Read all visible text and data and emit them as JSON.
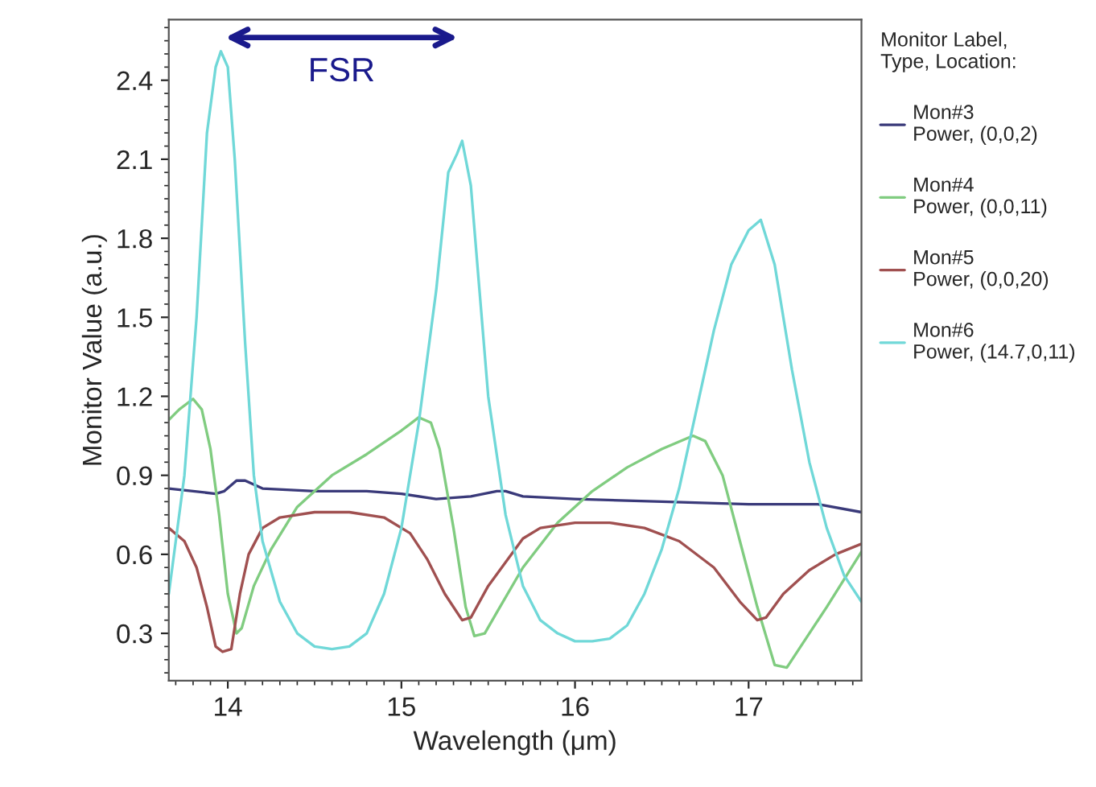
{
  "chart_data": {
    "type": "line",
    "xlabel": "Wavelength (μm)",
    "ylabel": "Monitor Value (a.u.)",
    "legend_title": "Monitor Label,\nType, Location:",
    "legend": "right",
    "grid": false,
    "marker": "none",
    "line_style": "solid",
    "xlim": [
      13.66,
      17.65
    ],
    "xticks": [
      14,
      15,
      16,
      17
    ],
    "ylim": [
      0.12,
      2.63
    ],
    "yticks": [
      0.3,
      0.6,
      0.9,
      1.2,
      1.5,
      1.8,
      2.1,
      2.4
    ],
    "annotations": [
      "FSR"
    ],
    "series": [
      {
        "name": "Mon#3\nPower, (0,0,2)",
        "color": "#3a3a7a",
        "x": [
          13.66,
          13.8,
          13.93,
          13.98,
          14.05,
          14.1,
          14.2,
          14.5,
          14.8,
          15.0,
          15.2,
          15.4,
          15.55,
          15.6,
          15.7,
          16.0,
          16.5,
          17.0,
          17.4,
          17.65
        ],
        "values": [
          0.85,
          0.84,
          0.83,
          0.84,
          0.88,
          0.88,
          0.85,
          0.84,
          0.84,
          0.83,
          0.81,
          0.82,
          0.84,
          0.84,
          0.82,
          0.81,
          0.8,
          0.79,
          0.79,
          0.76
        ]
      },
      {
        "name": "Mon#4\nPower, (0,0,11)",
        "color": "#80cc80",
        "x": [
          13.66,
          13.72,
          13.8,
          13.85,
          13.9,
          13.95,
          14.0,
          14.05,
          14.08,
          14.15,
          14.25,
          14.4,
          14.6,
          14.8,
          15.0,
          15.1,
          15.17,
          15.22,
          15.3,
          15.37,
          15.42,
          15.48,
          15.55,
          15.7,
          15.9,
          16.1,
          16.3,
          16.5,
          16.68,
          16.75,
          16.85,
          16.95,
          17.05,
          17.15,
          17.22,
          17.3,
          17.45,
          17.65
        ],
        "values": [
          1.11,
          1.15,
          1.19,
          1.15,
          1.0,
          0.75,
          0.45,
          0.3,
          0.32,
          0.48,
          0.62,
          0.78,
          0.9,
          0.98,
          1.07,
          1.12,
          1.1,
          1.0,
          0.7,
          0.4,
          0.29,
          0.3,
          0.38,
          0.55,
          0.72,
          0.84,
          0.93,
          1.0,
          1.05,
          1.03,
          0.9,
          0.65,
          0.4,
          0.18,
          0.17,
          0.25,
          0.4,
          0.61
        ]
      },
      {
        "name": "Mon#5\nPower, (0,0,20)",
        "color": "#a05050",
        "x": [
          13.66,
          13.75,
          13.82,
          13.88,
          13.93,
          13.97,
          14.02,
          14.07,
          14.12,
          14.2,
          14.3,
          14.5,
          14.7,
          14.9,
          15.05,
          15.15,
          15.25,
          15.35,
          15.4,
          15.5,
          15.6,
          15.7,
          15.8,
          16.0,
          16.2,
          16.4,
          16.6,
          16.8,
          16.95,
          17.05,
          17.1,
          17.2,
          17.35,
          17.5,
          17.65
        ],
        "values": [
          0.7,
          0.65,
          0.55,
          0.4,
          0.25,
          0.23,
          0.24,
          0.45,
          0.6,
          0.7,
          0.74,
          0.76,
          0.76,
          0.74,
          0.68,
          0.58,
          0.45,
          0.35,
          0.36,
          0.48,
          0.57,
          0.66,
          0.7,
          0.72,
          0.72,
          0.7,
          0.65,
          0.55,
          0.42,
          0.35,
          0.36,
          0.45,
          0.54,
          0.6,
          0.64
        ]
      },
      {
        "name": "Mon#6\nPower, (14.7,0,11)",
        "color": "#70d8d8",
        "x": [
          13.66,
          13.75,
          13.82,
          13.88,
          13.93,
          13.96,
          14.0,
          14.04,
          14.1,
          14.15,
          14.2,
          14.3,
          14.4,
          14.5,
          14.6,
          14.7,
          14.8,
          14.9,
          15.0,
          15.1,
          15.2,
          15.27,
          15.32,
          15.35,
          15.4,
          15.45,
          15.5,
          15.6,
          15.7,
          15.8,
          15.9,
          16.0,
          16.1,
          16.2,
          16.3,
          16.4,
          16.5,
          16.6,
          16.7,
          16.8,
          16.9,
          17.0,
          17.07,
          17.15,
          17.25,
          17.35,
          17.45,
          17.55,
          17.65
        ],
        "values": [
          0.45,
          0.9,
          1.5,
          2.2,
          2.45,
          2.51,
          2.45,
          2.1,
          1.4,
          0.9,
          0.65,
          0.42,
          0.3,
          0.25,
          0.24,
          0.25,
          0.3,
          0.45,
          0.7,
          1.1,
          1.6,
          2.05,
          2.12,
          2.17,
          2.0,
          1.6,
          1.2,
          0.75,
          0.48,
          0.35,
          0.3,
          0.27,
          0.27,
          0.28,
          0.33,
          0.45,
          0.62,
          0.85,
          1.15,
          1.45,
          1.7,
          1.83,
          1.87,
          1.7,
          1.3,
          0.95,
          0.7,
          0.52,
          0.42
        ]
      }
    ]
  }
}
